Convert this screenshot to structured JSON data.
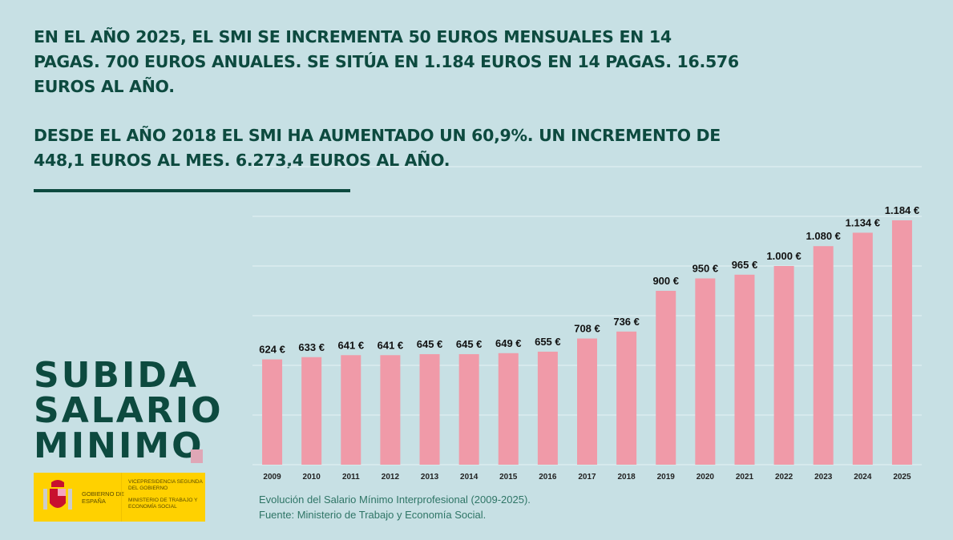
{
  "headline": {
    "paragraph1": "EN EL AÑO 2025, EL SMI SE INCREMENTA 50 EUROS MENSUALES EN 14 PAGAS. 700 EUROS ANUALES. SE SITÚA EN 1.184 EUROS EN 14 PAGAS. 16.576 EUROS AL AÑO.",
    "paragraph2": "DESDE EL AÑO 2018 EL SMI HA AUMENTADO UN 60,9%. UN INCREMENTO DE 448,1 EUROS AL MES. 6.273,4 EUROS AL AÑO."
  },
  "logo": {
    "lines": [
      "SUBIDA",
      "SALARIO",
      "MINIMO"
    ]
  },
  "government": {
    "name": "GOBIERNO DE ESPAÑA",
    "vice": "VICEPRESIDENCIA SEGUNDA DEL GOBIERNO",
    "ministry": "MINISTERIO DE TRABAJO Y ECONOMÍA SOCIAL"
  },
  "caption": {
    "line1": "Evolución del Salario Mínimo Interprofesional (2009-2025).",
    "line2": "Fuente: Ministerio de Trabajo y Economía Social."
  },
  "colors": {
    "background": "#c7e0e4",
    "bar": "#f09aa8",
    "text": "#0d4a3f",
    "accent": "#dfa7b6",
    "gov_yellow": "#ffd100"
  },
  "chart_data": {
    "type": "bar",
    "categories": [
      "2009",
      "2010",
      "2011",
      "2012",
      "2013",
      "2014",
      "2015",
      "2016",
      "2017",
      "2018",
      "2019",
      "2020",
      "2021",
      "2022",
      "2023",
      "2024",
      "2025"
    ],
    "values": [
      624,
      633,
      641,
      641,
      645,
      645,
      649,
      655,
      708,
      736,
      900,
      950,
      965,
      1000,
      1080,
      1134,
      1184
    ],
    "data_labels": [
      "624 €",
      "633 €",
      "641 €",
      "641 €",
      "645 €",
      "645 €",
      "649 €",
      "655 €",
      "708 €",
      "736 €",
      "900 €",
      "950 €",
      "965 €",
      "1.000 €",
      "1.080 €",
      "1.134 €",
      "1.184 €"
    ],
    "ylim": [
      200,
      1400
    ],
    "grid": true,
    "y_tick_labels_shown": false
  }
}
